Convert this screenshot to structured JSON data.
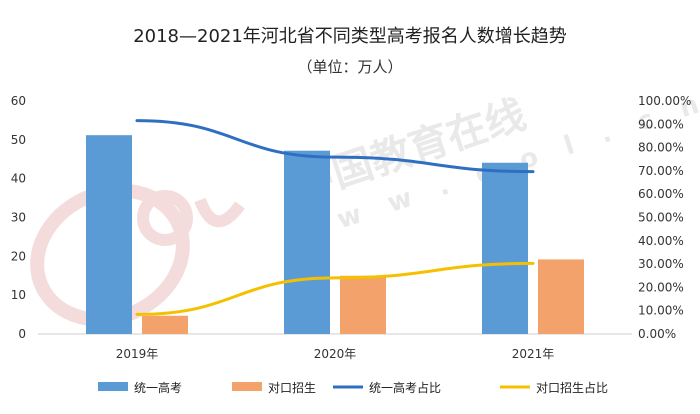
{
  "chart_data": {
    "type": "bar",
    "title": "2018—2021年河北省不同类型高考报名人数增长趋势",
    "subtitle": "（单位：万人）",
    "categories": [
      "2019年",
      "2020年",
      "2021年"
    ],
    "series": [
      {
        "name": "统一高考",
        "type": "bar",
        "axis": "left",
        "color": "#5b9bd5",
        "values": [
          51.2,
          47.2,
          44.1
        ]
      },
      {
        "name": "对口招生",
        "type": "bar",
        "axis": "left",
        "color": "#f4a26b",
        "values": [
          4.7,
          15.0,
          19.2
        ]
      },
      {
        "name": "统一高考占比",
        "type": "line",
        "axis": "right",
        "color": "#2f6fc2",
        "values": [
          91.6,
          75.9,
          69.7
        ]
      },
      {
        "name": "对口招生占比",
        "type": "line",
        "axis": "right",
        "color": "#f5c000",
        "values": [
          8.4,
          24.1,
          30.3
        ]
      }
    ],
    "ylim_left": [
      0,
      60
    ],
    "yticks_left": [
      0,
      10,
      20,
      30,
      40,
      50,
      60
    ],
    "ylim_right": [
      0,
      100
    ],
    "yticks_right": [
      "0.00%",
      "10.00%",
      "20.00%",
      "30.00%",
      "40.00%",
      "50.00%",
      "60.00%",
      "70.00%",
      "80.00%",
      "90.00%",
      "100.00%"
    ],
    "grid": false,
    "legend_position": "bottom"
  },
  "watermark": {
    "logo": "eol",
    "text": "中国教育在线",
    "url": "w w w . e o l . c n"
  }
}
